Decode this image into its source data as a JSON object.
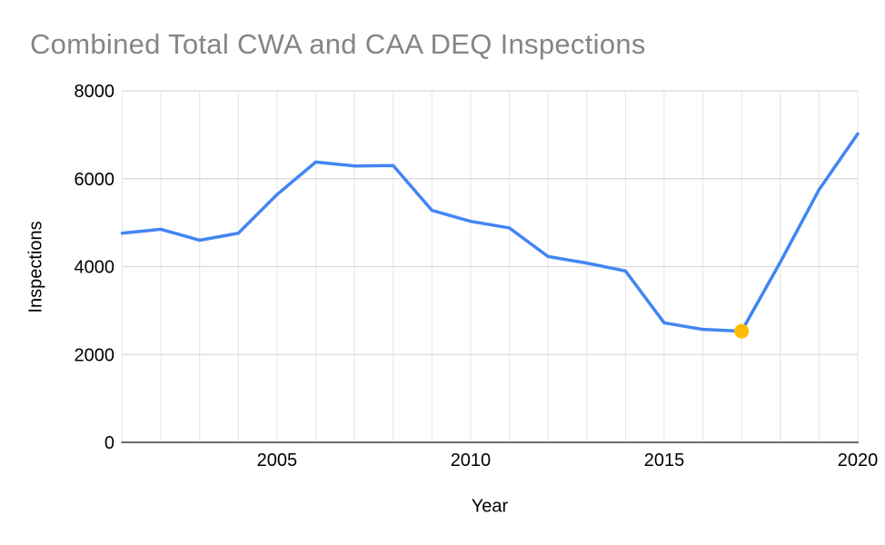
{
  "chart_data": {
    "type": "line",
    "title": "Combined Total CWA and CAA DEQ Inspections",
    "xlabel": "Year",
    "ylabel": "Inspections",
    "x": [
      2001,
      2002,
      2003,
      2004,
      2005,
      2006,
      2007,
      2008,
      2009,
      2010,
      2011,
      2012,
      2013,
      2014,
      2015,
      2016,
      2017,
      2018,
      2019,
      2020
    ],
    "values": [
      4760,
      4850,
      4600,
      4760,
      5640,
      6380,
      6290,
      6300,
      5280,
      5030,
      4880,
      4230,
      4080,
      3900,
      2720,
      2570,
      2530,
      4100,
      5750,
      7020
    ],
    "series_name": "Combined Total CWA and CAA DEQ Inspections",
    "xlim": [
      2001,
      2020
    ],
    "ylim": [
      0,
      8000
    ],
    "xticks": [
      2005,
      2010,
      2015,
      2020
    ],
    "yticks": [
      0,
      2000,
      4000,
      6000,
      8000
    ],
    "grid": "on",
    "legend": "none",
    "line_color": "#4285f4",
    "highlight_point": {
      "x": 2017,
      "value": 2530,
      "color": "#fbbc04"
    },
    "title_color": "#858585"
  }
}
